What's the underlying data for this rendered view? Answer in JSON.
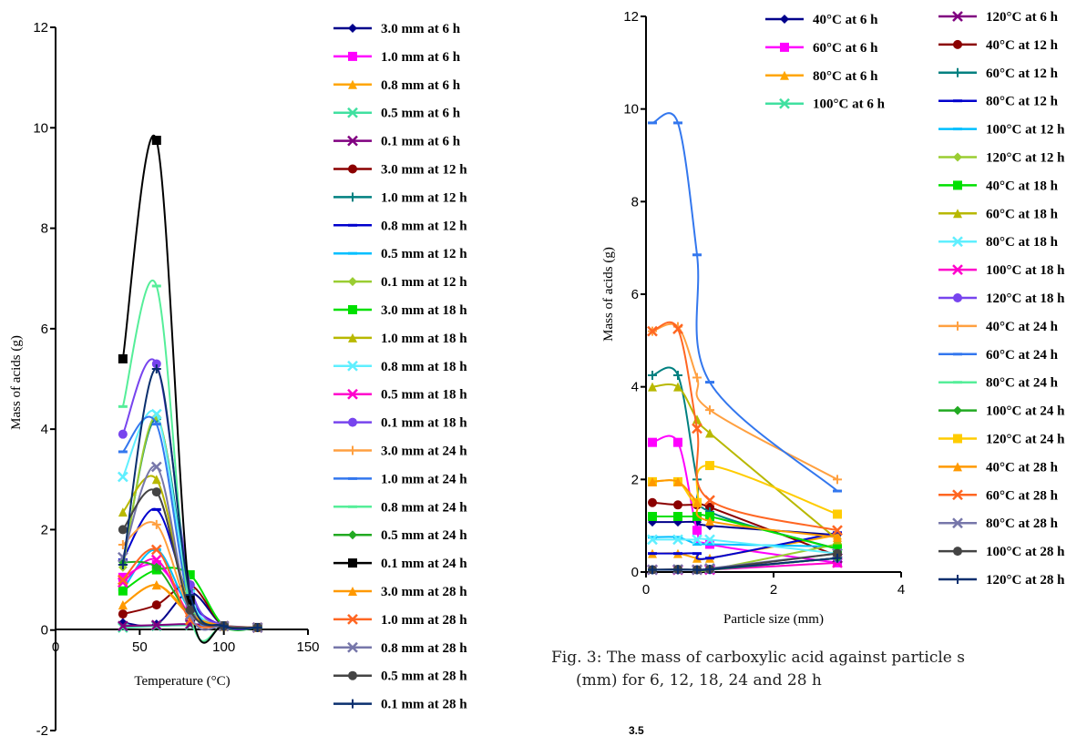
{
  "caption": {
    "line1": "Fig. 3: The mass of carboxylic acid against particle s",
    "line2": "(mm) for 6, 12, 18, 24 and 28 h"
  },
  "bottom_partial_label": "3.5",
  "chart_data": [
    {
      "type": "line",
      "xlabel": "Temperature (°C)",
      "ylabel": "Mass of acids (g)",
      "xlim": [
        0,
        150
      ],
      "ylim": [
        -2,
        12
      ],
      "xticks": [
        0,
        50,
        100,
        150
      ],
      "yticks": [
        -2,
        0,
        2,
        4,
        6,
        8,
        10,
        12
      ],
      "x": [
        40,
        60,
        80,
        100,
        120
      ],
      "series": [
        {
          "name": "3.0 mm at 6 h",
          "color": "#00008b",
          "marker": "diamond",
          "values": [
            0.15,
            0.12,
            0.75,
            0.08,
            0.05
          ]
        },
        {
          "name": "1.0 mm at 6 h",
          "color": "#ff00ff",
          "marker": "square",
          "values": [
            1.05,
            1.3,
            0.5,
            0.08,
            0.05
          ]
        },
        {
          "name": "0.8 mm at 6 h",
          "color": "#ffa500",
          "marker": "triangle",
          "values": [
            0.5,
            0.9,
            0.35,
            0.08,
            0.05
          ]
        },
        {
          "name": "0.5 mm at 6 h",
          "color": "#40e0a0",
          "marker": "x",
          "values": [
            0.05,
            0.08,
            0.1,
            0.08,
            0.05
          ]
        },
        {
          "name": "0.1 mm at 6 h",
          "color": "#800080",
          "marker": "x",
          "values": [
            0.08,
            0.1,
            0.12,
            0.08,
            0.05
          ]
        },
        {
          "name": "3.0 mm at 12 h",
          "color": "#8b0000",
          "marker": "circle",
          "values": [
            0.32,
            0.5,
            0.9,
            0.08,
            0.05
          ]
        },
        {
          "name": "1.0 mm at 12 h",
          "color": "#008080",
          "marker": "plus",
          "values": [
            1.3,
            4.2,
            0.8,
            0.08,
            0.05
          ]
        },
        {
          "name": "0.8 mm at 12 h",
          "color": "#0000cd",
          "marker": "dash",
          "values": [
            1.4,
            2.4,
            0.6,
            0.08,
            0.05
          ]
        },
        {
          "name": "0.5 mm at 12 h",
          "color": "#00bfff",
          "marker": "dash",
          "values": [
            0.8,
            1.6,
            0.4,
            0.08,
            0.05
          ]
        },
        {
          "name": "0.1 mm at 12 h",
          "color": "#9acd32",
          "marker": "diamond",
          "values": [
            1.25,
            4.25,
            0.55,
            0.08,
            0.05
          ]
        },
        {
          "name": "3.0 mm at 18 h",
          "color": "#00e000",
          "marker": "square",
          "values": [
            0.78,
            1.2,
            1.1,
            0.08,
            0.05
          ]
        },
        {
          "name": "1.0 mm at 18 h",
          "color": "#b8b800",
          "marker": "triangle",
          "values": [
            2.35,
            3.0,
            0.45,
            0.08,
            0.05
          ]
        },
        {
          "name": "0.8 mm at 18 h",
          "color": "#5fefff",
          "marker": "x",
          "values": [
            3.05,
            4.3,
            0.7,
            0.08,
            0.05
          ]
        },
        {
          "name": "0.5 mm at 18 h",
          "color": "#ff00cc",
          "marker": "x",
          "values": [
            0.95,
            1.4,
            0.3,
            0.08,
            0.05
          ]
        },
        {
          "name": "0.1 mm at 18 h",
          "color": "#7744ee",
          "marker": "circle",
          "values": [
            3.9,
            5.3,
            0.9,
            0.08,
            0.05
          ]
        },
        {
          "name": "3.0 mm at 24 h",
          "color": "#ffa040",
          "marker": "plus",
          "values": [
            1.7,
            2.1,
            0.4,
            0.08,
            0.05
          ]
        },
        {
          "name": "1.0 mm at 24 h",
          "color": "#3377ee",
          "marker": "dash",
          "values": [
            3.55,
            4.1,
            0.5,
            0.08,
            0.05
          ]
        },
        {
          "name": "0.8 mm at 24 h",
          "color": "#55ee99",
          "marker": "dash",
          "values": [
            4.45,
            6.85,
            0.35,
            0.08,
            0.05
          ]
        },
        {
          "name": "0.5 mm at 24 h",
          "color": "#22aa22",
          "marker": "diamond",
          "values": [
            1.35,
            1.25,
            0.3,
            0.08,
            0.05
          ]
        },
        {
          "name": "0.1 mm at 24 h",
          "color": "#000000",
          "marker": "square",
          "values": [
            5.4,
            9.75,
            0.6,
            0.08,
            0.05
          ]
        },
        {
          "name": "3.0 mm at 28 h",
          "color": "#ff9900",
          "marker": "triangle",
          "values": [
            0.5,
            0.9,
            0.3,
            0.08,
            0.05
          ]
        },
        {
          "name": "1.0 mm at 28 h",
          "color": "#ff6622",
          "marker": "x",
          "values": [
            1.0,
            1.6,
            0.2,
            0.08,
            0.05
          ]
        },
        {
          "name": "0.8 mm at 28 h",
          "color": "#7777aa",
          "marker": "x",
          "values": [
            1.45,
            3.25,
            0.3,
            0.08,
            0.05
          ]
        },
        {
          "name": "0.5 mm at 28 h",
          "color": "#444444",
          "marker": "circle",
          "values": [
            2.0,
            2.75,
            0.4,
            0.08,
            0.05
          ]
        },
        {
          "name": "0.1 mm at 28 h",
          "color": "#0a2f6e",
          "marker": "plus",
          "values": [
            1.3,
            5.2,
            0.7,
            0.08,
            0.05
          ]
        }
      ]
    },
    {
      "type": "line",
      "xlabel": "Particle size (mm)",
      "ylabel": "Mass of acids (g)",
      "xlim": [
        0,
        4
      ],
      "ylim": [
        0,
        12
      ],
      "xticks": [
        0,
        2,
        4
      ],
      "yticks": [
        0,
        2,
        4,
        6,
        8,
        10,
        12
      ],
      "x": [
        0.1,
        0.5,
        0.8,
        1.0,
        3.0
      ],
      "series": [
        {
          "name": "40°C at 6 h",
          "color": "#00008b",
          "marker": "diamond",
          "values": [
            1.08,
            1.08,
            1.08,
            1.0,
            0.8
          ]
        },
        {
          "name": "60°C at 6 h",
          "color": "#ff00ff",
          "marker": "square",
          "values": [
            2.8,
            2.8,
            0.9,
            0.6,
            0.2
          ]
        },
        {
          "name": "80°C at 6 h",
          "color": "#ffa500",
          "marker": "triangle",
          "values": [
            0.4,
            0.4,
            0.3,
            0.3,
            0.8
          ]
        },
        {
          "name": "100°C at 6 h",
          "color": "#40e0a0",
          "marker": "x",
          "values": [
            0.05,
            0.05,
            0.05,
            0.05,
            0.3
          ]
        },
        {
          "name": "120°C at 6 h",
          "color": "#800080",
          "marker": "x",
          "values": [
            0.05,
            0.05,
            0.05,
            0.06,
            0.3
          ]
        },
        {
          "name": "40°C at 12 h",
          "color": "#8b0000",
          "marker": "circle",
          "values": [
            1.5,
            1.45,
            1.45,
            1.4,
            0.35
          ]
        },
        {
          "name": "60°C at 12 h",
          "color": "#008080",
          "marker": "plus",
          "values": [
            4.25,
            4.25,
            2.0,
            1.3,
            0.5
          ]
        },
        {
          "name": "80°C at 12 h",
          "color": "#0000cd",
          "marker": "dash",
          "values": [
            0.4,
            0.4,
            0.4,
            0.3,
            0.85
          ]
        },
        {
          "name": "100°C at 12 h",
          "color": "#00bfff",
          "marker": "dash",
          "values": [
            0.75,
            0.75,
            0.6,
            0.6,
            0.55
          ]
        },
        {
          "name": "120°C at 12 h",
          "color": "#9acd32",
          "marker": "diamond",
          "values": [
            0.05,
            0.05,
            0.05,
            0.05,
            0.6
          ]
        },
        {
          "name": "40°C at 18 h",
          "color": "#00e000",
          "marker": "square",
          "values": [
            1.2,
            1.2,
            1.2,
            1.2,
            0.5
          ]
        },
        {
          "name": "60°C at 18 h",
          "color": "#b8b800",
          "marker": "triangle",
          "values": [
            4.0,
            4.0,
            3.3,
            3.0,
            0.7
          ]
        },
        {
          "name": "80°C at 18 h",
          "color": "#5fefff",
          "marker": "x",
          "values": [
            0.7,
            0.7,
            0.7,
            0.7,
            0.4
          ]
        },
        {
          "name": "100°C at 18 h",
          "color": "#ff00cc",
          "marker": "x",
          "values": [
            0.05,
            0.05,
            0.05,
            0.05,
            0.2
          ]
        },
        {
          "name": "120°C at 18 h",
          "color": "#7744ee",
          "marker": "circle",
          "values": [
            0.05,
            0.05,
            0.05,
            0.05,
            0.3
          ]
        },
        {
          "name": "40°C at 24 h",
          "color": "#ffa040",
          "marker": "plus",
          "values": [
            5.2,
            5.3,
            4.2,
            3.5,
            2.0
          ]
        },
        {
          "name": "60°C at 24 h",
          "color": "#3377ee",
          "marker": "dash",
          "values": [
            9.7,
            9.7,
            6.85,
            4.1,
            1.75
          ]
        },
        {
          "name": "80°C at 24 h",
          "color": "#55ee99",
          "marker": "dash",
          "values": [
            0.05,
            0.05,
            0.05,
            0.05,
            0.3
          ]
        },
        {
          "name": "100°C at 24 h",
          "color": "#22aa22",
          "marker": "diamond",
          "values": [
            0.05,
            0.05,
            0.05,
            0.05,
            0.3
          ]
        },
        {
          "name": "120°C at 24 h",
          "color": "#ffcc00",
          "marker": "square",
          "values": [
            1.95,
            1.95,
            1.5,
            2.3,
            1.25
          ]
        },
        {
          "name": "40°C at 28 h",
          "color": "#ff9900",
          "marker": "triangle",
          "values": [
            1.95,
            1.95,
            1.5,
            1.1,
            0.75
          ]
        },
        {
          "name": "60°C at 28 h",
          "color": "#ff6622",
          "marker": "x",
          "values": [
            5.2,
            5.25,
            3.1,
            1.55,
            0.9
          ]
        },
        {
          "name": "80°C at 28 h",
          "color": "#7777aa",
          "marker": "x",
          "values": [
            0.05,
            0.06,
            0.05,
            0.08,
            0.4
          ]
        },
        {
          "name": "100°C at 28 h",
          "color": "#444444",
          "marker": "circle",
          "values": [
            0.05,
            0.06,
            0.05,
            0.06,
            0.4
          ]
        },
        {
          "name": "120°C at 28 h",
          "color": "#0a2f6e",
          "marker": "plus",
          "values": [
            0.05,
            0.05,
            0.05,
            0.06,
            0.3
          ]
        }
      ]
    }
  ]
}
